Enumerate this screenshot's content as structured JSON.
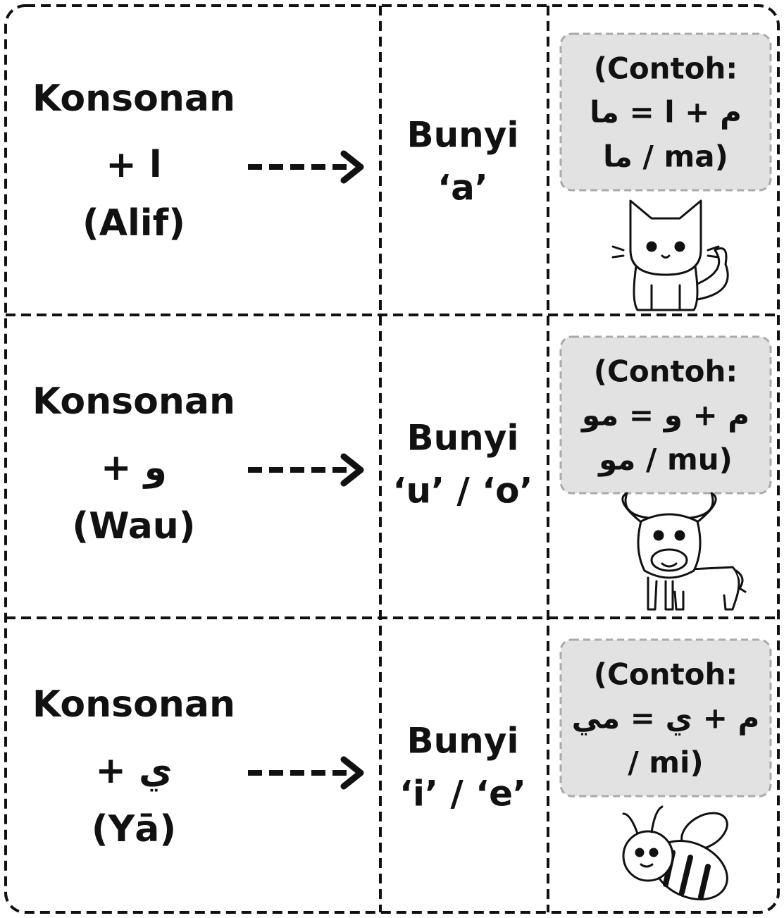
{
  "rows": [
    {
      "consonant": "Konsonan",
      "letter": "+ ا",
      "letter_name": "(Alif)",
      "sound_label": "Bunyi",
      "sound": "‘a’",
      "example": [
        "(Contoh:",
        "م + ا = ما",
        "ما / ma)"
      ]
    },
    {
      "consonant": "Konsonan",
      "letter": "+ و",
      "letter_name": "(Wau)",
      "sound_label": "Bunyi",
      "sound": "‘u’ / ‘o’",
      "example": [
        "(Contoh:",
        "م + و = مو",
        "مو / mu)"
      ]
    },
    {
      "consonant": "Konsonan",
      "letter": "+ ي",
      "letter_name": "(Yā)",
      "sound_label": "Bunyi",
      "sound": "‘i’ / ‘e’",
      "example": [
        "(Contoh:",
        "م + ي = مي",
        "/ mi)"
      ]
    }
  ]
}
